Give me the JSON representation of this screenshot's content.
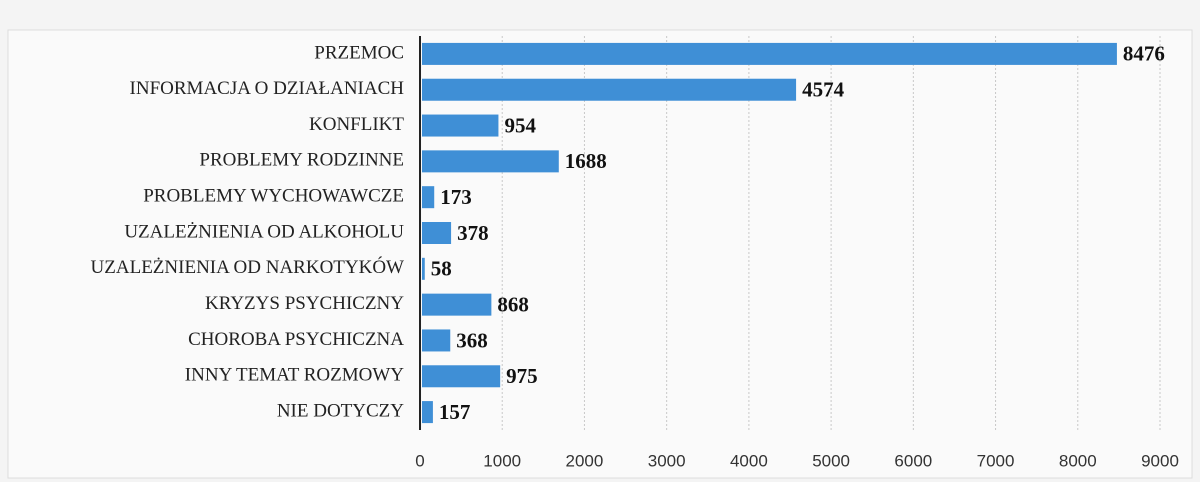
{
  "chart_data": {
    "type": "barh",
    "categories": [
      "PRZEMOC",
      "INFORMACJA O DZIAŁANIACH",
      "KONFLIKT",
      "PROBLEMY RODZINNE",
      "PROBLEMY WYCHOWAWCZE",
      "UZALEŻNIENIA OD ALKOHOLU",
      "UZALEŻNIENIA OD NARKOTYKÓW",
      "KRYZYS PSYCHICZNY",
      "CHOROBA PSYCHICZNA",
      "INNY TEMAT ROZMOWY",
      "NIE DOTYCZY"
    ],
    "values": [
      8476,
      4574,
      954,
      1688,
      173,
      378,
      58,
      868,
      368,
      975,
      157
    ],
    "color": "#3f8fd6",
    "xlim": [
      0,
      9000
    ],
    "xticks": [
      0,
      1000,
      2000,
      3000,
      4000,
      5000,
      6000,
      7000,
      8000,
      9000
    ],
    "grid": true
  }
}
